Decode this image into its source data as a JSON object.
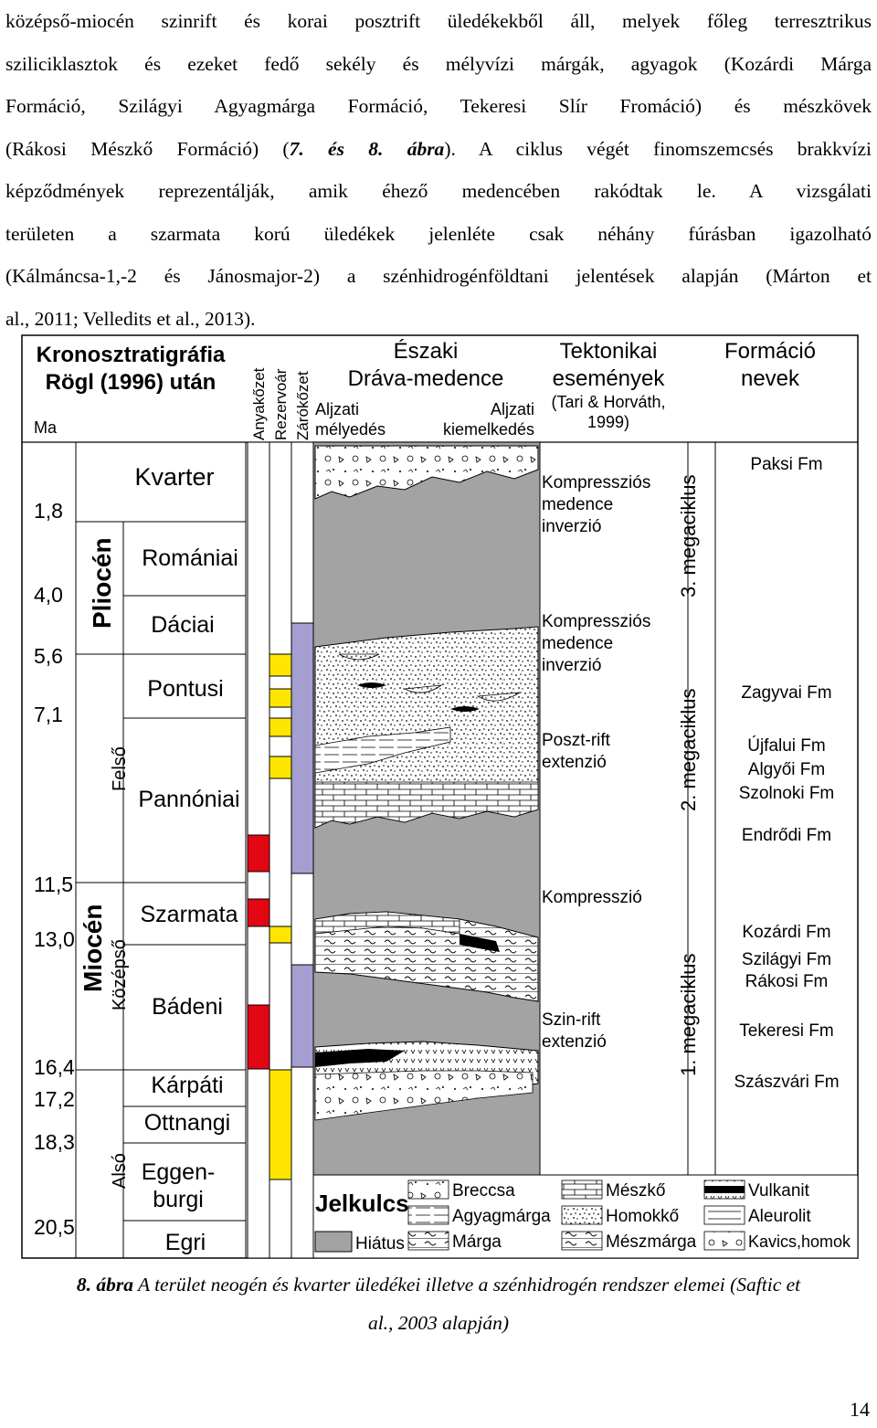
{
  "paragraph_lines": [
    "középső-miocén szinrift és korai posztrift üledékekből áll, melyek főleg terresztrikus",
    "sziliciklasztok és ezeket fedő sekély és mélyvízi márgák, agyagok (Kozárdi Márga",
    "Formáció, Szilágyi Agyagmárga Formáció, Tekeresi Slír Fromáció) és mészkövek",
    "(Rákosi Mészkő Formáció) (",
    "képződmények reprezentálják, amik éhező medencében rakódtak le. A vizsgálati",
    "területen a szarmata korú üledékek jelenléte csak néhány fúrásban igazolható",
    "(Kálmáncsa-1,-2 és Jánosmajor-2) a szénhidrogénföldtani jelentések alapján (Márton et",
    "al., 2011; Velledits et al., 2013)."
  ],
  "ref_ital": "7. és 8. ábra",
  "ref_tail": "). A ciklus végét finomszemcsés brakkvízi",
  "figure": {
    "header": {
      "col1_line1": "Kronosztratigráfia",
      "col1_line2": "Rögl (1996) után",
      "ma": "Ma",
      "petroleum_cols": [
        "Anyakőzet",
        "Rezervoár",
        "Zárókőzet"
      ],
      "basin_line1": "Északi",
      "basin_line2": "Dráva-medence",
      "aljzati_melyedes_1": "Aljzati",
      "aljzati_melyedes_2": "mélyedés",
      "aljzati_kiemelkedes_1": "Aljzati",
      "aljzati_kiemelkedes_2": "kiemelkedés",
      "tect_line1": "Tektonikai",
      "tect_line2": "események",
      "tect_line3": "(Tari & Horváth,",
      "tect_line4": "1999)",
      "form_line1": "Formáció",
      "form_line2": "nevek"
    },
    "ages": [
      "1,8",
      "4,0",
      "5,6",
      "7,1",
      "11,5",
      "13,0",
      "16,4",
      "17,2",
      "18,3",
      "20,5"
    ],
    "epochs": [
      "Pliocén",
      "Miocén"
    ],
    "subepochs": [
      "Felső",
      "Középső",
      "Alsó"
    ],
    "stages": [
      "Kvarter",
      "Romániai",
      "Dáciai",
      "Pontusi",
      "Pannóniai",
      "Szarmata",
      "Bádeni",
      "Kárpáti",
      "Ottnangi",
      "Eggen-",
      "burgi",
      "Egri"
    ],
    "tectonic_events": [
      [
        "Kompressziós",
        "medence",
        "inverzió"
      ],
      [
        "Kompressziós",
        "medence",
        "inverzió"
      ],
      [
        "Poszt-rift",
        "extenzió"
      ],
      [
        "Kompresszió"
      ],
      [
        "Szin-rift",
        "extenzió"
      ]
    ],
    "megacycles": [
      "3. megaciklus",
      "2. megaciklus",
      "1. megaciklus"
    ],
    "formations": [
      "Paksi Fm",
      "Zagyvai Fm",
      "Újfalui Fm",
      "Algyői Fm",
      "Szolnoki Fm",
      "Endrődi Fm",
      "Kozárdi Fm",
      "Szilágyi Fm",
      "Rákosi Fm",
      "Tekeresi Fm",
      "Szászvári Fm"
    ],
    "legend": {
      "title": "Jelkulcs",
      "hiatus": "Hiátus",
      "items": [
        "Breccsa",
        "Agyagmárga",
        "Márga",
        "Mészkő",
        "Homokkő",
        "Mészmárga",
        "Vulkanit",
        "Aleurolit",
        "Kavics,homok"
      ]
    },
    "colors": {
      "source_rock": "#e30613",
      "reservoir": "#ffe600",
      "seal": "#a49fd0",
      "hiatus": "#a3a3a3"
    }
  },
  "caption_bold": "8. ábra",
  "caption_text": " A terület neogén és kvarter üledékei illetve a szénhidrogén rendszer elemei (Saftic et",
  "caption_line2": "al., 2003 alapján)",
  "page_number": "14"
}
